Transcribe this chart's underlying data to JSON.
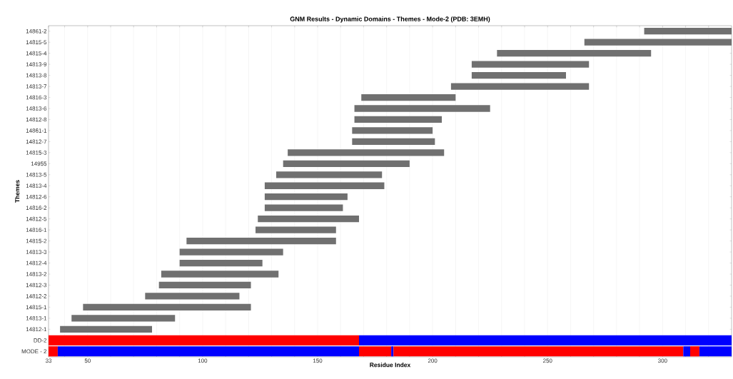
{
  "chart_data": {
    "type": "bar",
    "orientation": "horizontal",
    "title": "GNM Results - Dynamic Domains - Themes - Mode-2 (PDB: 3EMH)",
    "xlabel": "Residue Index",
    "ylabel": "Themes",
    "categories": [
      "14861-2",
      "14815-5",
      "14815-4",
      "14813-9",
      "14813-8",
      "14813-7",
      "14816-3",
      "14813-6",
      "14812-8",
      "14861-1",
      "14812-7",
      "14815-3",
      "14955",
      "14813-5",
      "14813-4",
      "14812-6",
      "14816-2",
      "14812-5",
      "14816-1",
      "14815-2",
      "14813-3",
      "14812-4",
      "14813-2",
      "14812-3",
      "14812-2",
      "14815-1",
      "14813-1",
      "14812-1",
      "DD-2",
      "MODE - 2"
    ],
    "series": [
      {
        "color": "#707070",
        "base": [
          292,
          266,
          228,
          217,
          217,
          208,
          169,
          166,
          166,
          165,
          165,
          137,
          135,
          132,
          127,
          127,
          127,
          124,
          123,
          93,
          90,
          90,
          82,
          81,
          75,
          48,
          43,
          38,
          null,
          null
        ],
        "values": [
          38,
          64,
          67,
          51,
          41,
          60,
          41,
          59,
          38,
          35,
          36,
          68,
          55,
          46,
          52,
          36,
          34,
          44,
          35,
          65,
          45,
          36,
          51,
          40,
          41,
          73,
          45,
          40,
          null,
          null
        ]
      },
      {
        "color": "#ff0000",
        "base": [
          null,
          null,
          null,
          null,
          null,
          null,
          null,
          null,
          null,
          null,
          null,
          null,
          null,
          null,
          null,
          null,
          null,
          null,
          null,
          null,
          null,
          null,
          null,
          null,
          null,
          null,
          null,
          null,
          33,
          33
        ],
        "values": [
          null,
          null,
          null,
          null,
          null,
          null,
          null,
          null,
          null,
          null,
          null,
          null,
          null,
          null,
          null,
          null,
          null,
          null,
          null,
          null,
          null,
          null,
          null,
          null,
          null,
          null,
          null,
          null,
          135,
          4
        ]
      },
      {
        "color": "#0000ff",
        "base": [
          null,
          null,
          null,
          null,
          null,
          null,
          null,
          null,
          null,
          null,
          null,
          null,
          null,
          null,
          null,
          null,
          null,
          null,
          null,
          null,
          null,
          null,
          null,
          null,
          null,
          null,
          null,
          null,
          168,
          37
        ],
        "values": [
          null,
          null,
          null,
          null,
          null,
          null,
          null,
          null,
          null,
          null,
          null,
          null,
          null,
          null,
          null,
          null,
          null,
          null,
          null,
          null,
          null,
          null,
          null,
          null,
          null,
          null,
          null,
          null,
          162,
          131
        ]
      },
      {
        "color": "#ff0000",
        "base": [
          null,
          null,
          null,
          null,
          null,
          null,
          null,
          null,
          null,
          null,
          null,
          null,
          null,
          null,
          null,
          null,
          null,
          null,
          null,
          null,
          null,
          null,
          null,
          null,
          null,
          null,
          null,
          null,
          null,
          168
        ],
        "values": [
          null,
          null,
          null,
          null,
          null,
          null,
          null,
          null,
          null,
          null,
          null,
          null,
          null,
          null,
          null,
          null,
          null,
          null,
          null,
          null,
          null,
          null,
          null,
          null,
          null,
          null,
          null,
          null,
          null,
          14
        ]
      },
      {
        "color": "#0000ff",
        "base": [
          null,
          null,
          null,
          null,
          null,
          null,
          null,
          null,
          null,
          null,
          null,
          null,
          null,
          null,
          null,
          null,
          null,
          null,
          null,
          null,
          null,
          null,
          null,
          null,
          null,
          null,
          null,
          null,
          null,
          182
        ],
        "values": [
          null,
          null,
          null,
          null,
          null,
          null,
          null,
          null,
          null,
          null,
          null,
          null,
          null,
          null,
          null,
          null,
          null,
          null,
          null,
          null,
          null,
          null,
          null,
          null,
          null,
          null,
          null,
          null,
          null,
          1
        ]
      },
      {
        "color": "#ff0000",
        "base": [
          null,
          null,
          null,
          null,
          null,
          null,
          null,
          null,
          null,
          null,
          null,
          null,
          null,
          null,
          null,
          null,
          null,
          null,
          null,
          null,
          null,
          null,
          null,
          null,
          null,
          null,
          null,
          null,
          null,
          183
        ],
        "values": [
          null,
          null,
          null,
          null,
          null,
          null,
          null,
          null,
          null,
          null,
          null,
          null,
          null,
          null,
          null,
          null,
          null,
          null,
          null,
          null,
          null,
          null,
          null,
          null,
          null,
          null,
          null,
          null,
          null,
          126
        ]
      },
      {
        "color": "#0000ff",
        "base": [
          null,
          null,
          null,
          null,
          null,
          null,
          null,
          null,
          null,
          null,
          null,
          null,
          null,
          null,
          null,
          null,
          null,
          null,
          null,
          null,
          null,
          null,
          null,
          null,
          null,
          null,
          null,
          null,
          null,
          309
        ],
        "values": [
          null,
          null,
          null,
          null,
          null,
          null,
          null,
          null,
          null,
          null,
          null,
          null,
          null,
          null,
          null,
          null,
          null,
          null,
          null,
          null,
          null,
          null,
          null,
          null,
          null,
          null,
          null,
          null,
          null,
          3
        ]
      },
      {
        "color": "#ff0000",
        "base": [
          null,
          null,
          null,
          null,
          null,
          null,
          null,
          null,
          null,
          null,
          null,
          null,
          null,
          null,
          null,
          null,
          null,
          null,
          null,
          null,
          null,
          null,
          null,
          null,
          null,
          null,
          null,
          null,
          null,
          312
        ],
        "values": [
          null,
          null,
          null,
          null,
          null,
          null,
          null,
          null,
          null,
          null,
          null,
          null,
          null,
          null,
          null,
          null,
          null,
          null,
          null,
          null,
          null,
          null,
          null,
          null,
          null,
          null,
          null,
          null,
          null,
          4
        ]
      },
      {
        "color": "#0000ff",
        "base": [
          null,
          null,
          null,
          null,
          null,
          null,
          null,
          null,
          null,
          null,
          null,
          null,
          null,
          null,
          null,
          null,
          null,
          null,
          null,
          null,
          null,
          null,
          null,
          null,
          null,
          null,
          null,
          null,
          null,
          316
        ],
        "values": [
          null,
          null,
          null,
          null,
          null,
          null,
          null,
          null,
          null,
          null,
          null,
          null,
          null,
          null,
          null,
          null,
          null,
          null,
          null,
          null,
          null,
          null,
          null,
          null,
          null,
          null,
          null,
          null,
          null,
          14
        ]
      }
    ],
    "xlim": [
      33,
      330
    ],
    "xticks": [
      33,
      {
        "value": 40,
        "label": null
      },
      50,
      {
        "value": 60,
        "label": null
      },
      {
        "value": 70,
        "label": null
      },
      {
        "value": 80,
        "label": null
      },
      {
        "value": 90,
        "label": null
      },
      100,
      {
        "value": 110,
        "label": null
      },
      {
        "value": 120,
        "label": null
      },
      {
        "value": 130,
        "label": null
      },
      {
        "value": 140,
        "label": null
      },
      150,
      {
        "value": 160,
        "label": null
      },
      {
        "value": 170,
        "label": null
      },
      {
        "value": 180,
        "label": null
      },
      {
        "value": 190,
        "label": null
      },
      200,
      {
        "value": 210,
        "label": null
      },
      {
        "value": 220,
        "label": null
      },
      {
        "value": 230,
        "label": null
      },
      {
        "value": 240,
        "label": null
      },
      250,
      {
        "value": 260,
        "label": null
      },
      {
        "value": 270,
        "label": null
      },
      {
        "value": 280,
        "label": null
      },
      {
        "value": 290,
        "label": null
      },
      300,
      {
        "value": 310,
        "label": null
      },
      {
        "value": 320,
        "label": null
      }
    ],
    "grid": "x"
  }
}
